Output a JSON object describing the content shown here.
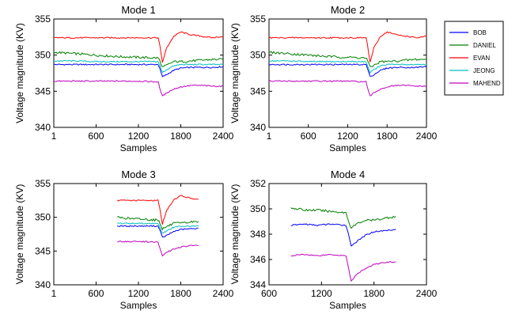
{
  "chart_data": [
    {
      "type": "line",
      "title": "Mode 1",
      "xlabel": "Samples",
      "ylabel": "Voltage magnitude (KV)",
      "xlim": [
        1,
        2400
      ],
      "ylim": [
        340,
        355
      ],
      "xticks": [
        "1",
        "600",
        "1200",
        "1800",
        "2400"
      ],
      "yticks": [
        "340",
        "345",
        "350",
        "355"
      ],
      "series": [
        {
          "name": "BOB",
          "x": [
            1,
            300,
            600,
            900,
            1200,
            1480,
            1500,
            1540,
            1600,
            1700,
            1800,
            1950,
            2100,
            2250,
            2400
          ],
          "values": [
            348.7,
            348.7,
            348.7,
            348.7,
            348.7,
            348.7,
            348.2,
            347.0,
            347.3,
            347.9,
            348.2,
            348.3,
            348.3,
            348.3,
            348.4
          ]
        },
        {
          "name": "DANIEL",
          "x": [
            1,
            300,
            600,
            900,
            1200,
            1480,
            1500,
            1540,
            1600,
            1700,
            1800,
            1950,
            2100,
            2250,
            2400
          ],
          "values": [
            350.4,
            350.2,
            350.0,
            349.8,
            349.7,
            349.6,
            349.3,
            348.3,
            348.6,
            349.1,
            349.1,
            349.2,
            349.3,
            349.4,
            349.4
          ]
        },
        {
          "name": "EVAN",
          "x": [
            1,
            300,
            600,
            900,
            1200,
            1480,
            1500,
            1540,
            1600,
            1700,
            1800,
            1950,
            2100,
            2250,
            2400
          ],
          "values": [
            352.4,
            352.4,
            352.4,
            352.4,
            352.4,
            352.4,
            351.5,
            349.0,
            351.0,
            352.6,
            353.2,
            352.8,
            352.6,
            352.4,
            352.6
          ]
        },
        {
          "name": "JEONG",
          "x": [
            1,
            300,
            600,
            900,
            1200,
            1480,
            1500,
            1540,
            1600,
            1700,
            1800,
            1950,
            2100,
            2250,
            2400
          ],
          "values": [
            349.2,
            349.2,
            349.1,
            349.1,
            349.1,
            349.1,
            348.6,
            347.6,
            348.0,
            348.5,
            348.7,
            348.7,
            348.7,
            348.7,
            348.7
          ]
        },
        {
          "name": "MAHEND",
          "x": [
            1,
            300,
            600,
            900,
            1200,
            1480,
            1500,
            1540,
            1600,
            1700,
            1800,
            1950,
            2100,
            2250,
            2400
          ],
          "values": [
            346.4,
            346.4,
            346.4,
            346.4,
            346.4,
            346.3,
            345.5,
            344.3,
            344.8,
            345.3,
            345.6,
            345.8,
            345.8,
            345.7,
            345.7
          ]
        }
      ]
    },
    {
      "type": "line",
      "title": "Mode 2",
      "xlabel": "Samples",
      "ylabel": "Voltage magnitude (KV)",
      "xlim": [
        1,
        2400
      ],
      "ylim": [
        340,
        355
      ],
      "xticks": [
        "1",
        "600",
        "1200",
        "1800",
        "2400"
      ],
      "yticks": [
        "340",
        "345",
        "350",
        "355"
      ],
      "series": [
        {
          "name": "BOB",
          "x": [
            1,
            300,
            600,
            900,
            1200,
            1480,
            1500,
            1540,
            1600,
            1700,
            1800,
            1950,
            2100,
            2250,
            2400
          ],
          "values": [
            348.7,
            348.7,
            348.7,
            348.7,
            348.7,
            348.7,
            348.2,
            347.0,
            347.3,
            347.9,
            348.2,
            348.3,
            348.3,
            348.3,
            348.4
          ]
        },
        {
          "name": "DANIEL",
          "x": [
            1,
            300,
            600,
            900,
            1200,
            1480,
            1500,
            1540,
            1600,
            1700,
            1800,
            1950,
            2100,
            2250,
            2400
          ],
          "values": [
            350.4,
            350.2,
            350.0,
            349.8,
            349.7,
            349.6,
            349.3,
            348.3,
            348.6,
            349.1,
            349.1,
            349.2,
            349.3,
            349.4,
            349.4
          ]
        },
        {
          "name": "EVAN",
          "x": [
            1,
            300,
            600,
            900,
            1200,
            1480,
            1500,
            1540,
            1600,
            1700,
            1800,
            1950,
            2100,
            2250,
            2400
          ],
          "values": [
            352.4,
            352.4,
            352.4,
            352.4,
            352.4,
            352.4,
            351.5,
            349.0,
            351.0,
            352.6,
            353.2,
            352.8,
            352.6,
            352.4,
            352.6
          ]
        },
        {
          "name": "JEONG",
          "x": [
            1,
            300,
            600,
            900,
            1200,
            1480,
            1500,
            1540,
            1600,
            1700,
            1800,
            1950,
            2100,
            2250,
            2400
          ],
          "values": [
            349.2,
            349.2,
            349.1,
            349.1,
            349.1,
            349.1,
            348.6,
            347.6,
            348.0,
            348.5,
            348.7,
            348.7,
            348.7,
            348.7,
            348.7
          ]
        },
        {
          "name": "MAHEND",
          "x": [
            1,
            300,
            600,
            900,
            1200,
            1480,
            1500,
            1540,
            1600,
            1700,
            1800,
            1950,
            2100,
            2250,
            2400
          ],
          "values": [
            346.4,
            346.4,
            346.4,
            346.4,
            346.4,
            346.3,
            345.5,
            344.3,
            344.8,
            345.3,
            345.6,
            345.8,
            345.8,
            345.7,
            345.7
          ]
        }
      ]
    },
    {
      "type": "line",
      "title": "Mode 3",
      "xlabel": "Samples",
      "ylabel": "Voltage magnitude (KV)",
      "xlim": [
        1,
        2400
      ],
      "ylim": [
        340,
        355
      ],
      "xticks": [
        "1",
        "600",
        "1200",
        "1800",
        "2400"
      ],
      "yticks": [
        "340",
        "345",
        "350",
        "355"
      ],
      "series": [
        {
          "name": "BOB",
          "x": [
            900,
            1100,
            1300,
            1480,
            1500,
            1540,
            1600,
            1700,
            1800,
            1950,
            2050
          ],
          "values": [
            348.7,
            348.7,
            348.7,
            348.7,
            348.2,
            347.0,
            347.3,
            347.9,
            348.2,
            348.3,
            348.4
          ]
        },
        {
          "name": "DANIEL",
          "x": [
            900,
            1100,
            1300,
            1480,
            1500,
            1540,
            1600,
            1700,
            1800,
            1950,
            2050
          ],
          "values": [
            350.0,
            349.8,
            349.7,
            349.6,
            349.3,
            348.3,
            348.6,
            349.1,
            349.1,
            349.3,
            349.4
          ]
        },
        {
          "name": "EVAN",
          "x": [
            900,
            1100,
            1300,
            1480,
            1500,
            1540,
            1600,
            1700,
            1800,
            1950,
            2050
          ],
          "values": [
            352.5,
            352.5,
            352.5,
            352.5,
            351.5,
            349.0,
            351.0,
            352.6,
            353.2,
            352.8,
            352.7
          ]
        },
        {
          "name": "JEONG",
          "x": [
            900,
            1100,
            1300,
            1480,
            1500,
            1540,
            1600,
            1700,
            1800,
            1950,
            2050
          ],
          "values": [
            349.1,
            349.1,
            349.1,
            349.1,
            348.6,
            347.6,
            348.0,
            348.5,
            348.7,
            348.7,
            348.7
          ]
        },
        {
          "name": "MAHEND",
          "x": [
            900,
            1100,
            1300,
            1480,
            1500,
            1540,
            1600,
            1700,
            1800,
            1950,
            2050
          ],
          "values": [
            346.4,
            346.4,
            346.4,
            346.3,
            345.5,
            344.3,
            344.8,
            345.3,
            345.6,
            345.8,
            345.8
          ]
        }
      ]
    },
    {
      "type": "line",
      "title": "Mode 4",
      "xlabel": "Samples",
      "ylabel": "Voltage magnitude (KV)",
      "xlim": [
        600,
        2400
      ],
      "ylim": [
        344,
        352
      ],
      "xticks": [
        "600",
        "1200",
        "1800",
        "2400"
      ],
      "yticks": [
        "344",
        "346",
        "348",
        "350",
        "352"
      ],
      "series": [
        {
          "name": "BOB",
          "x": [
            850,
            1000,
            1150,
            1300,
            1480,
            1500,
            1540,
            1600,
            1700,
            1800,
            1950,
            2050
          ],
          "values": [
            348.7,
            348.8,
            348.7,
            348.8,
            348.7,
            348.2,
            347.1,
            347.4,
            347.9,
            348.2,
            348.3,
            348.4
          ]
        },
        {
          "name": "DANIEL",
          "x": [
            850,
            1000,
            1150,
            1300,
            1480,
            1500,
            1540,
            1600,
            1700,
            1800,
            1950,
            2050
          ],
          "values": [
            350.1,
            349.9,
            349.9,
            349.8,
            349.7,
            349.2,
            348.5,
            348.8,
            349.1,
            349.1,
            349.3,
            349.4
          ]
        },
        {
          "name": "MAHEND",
          "x": [
            850,
            1000,
            1150,
            1300,
            1480,
            1500,
            1540,
            1600,
            1700,
            1800,
            1950,
            2050
          ],
          "values": [
            346.3,
            346.4,
            346.3,
            346.4,
            346.3,
            345.6,
            344.3,
            344.8,
            345.3,
            345.6,
            345.8,
            345.8
          ]
        }
      ]
    }
  ],
  "legend": {
    "placement": "top-right",
    "entries": [
      {
        "name": "BOB",
        "color": "#0000ff"
      },
      {
        "name": "DANIEL",
        "color": "#008000"
      },
      {
        "name": "EVAN",
        "color": "#ff0000"
      },
      {
        "name": "JEONG",
        "color": "#00bfbf"
      },
      {
        "name": "MAHEND",
        "color": "#bf00bf"
      }
    ]
  }
}
